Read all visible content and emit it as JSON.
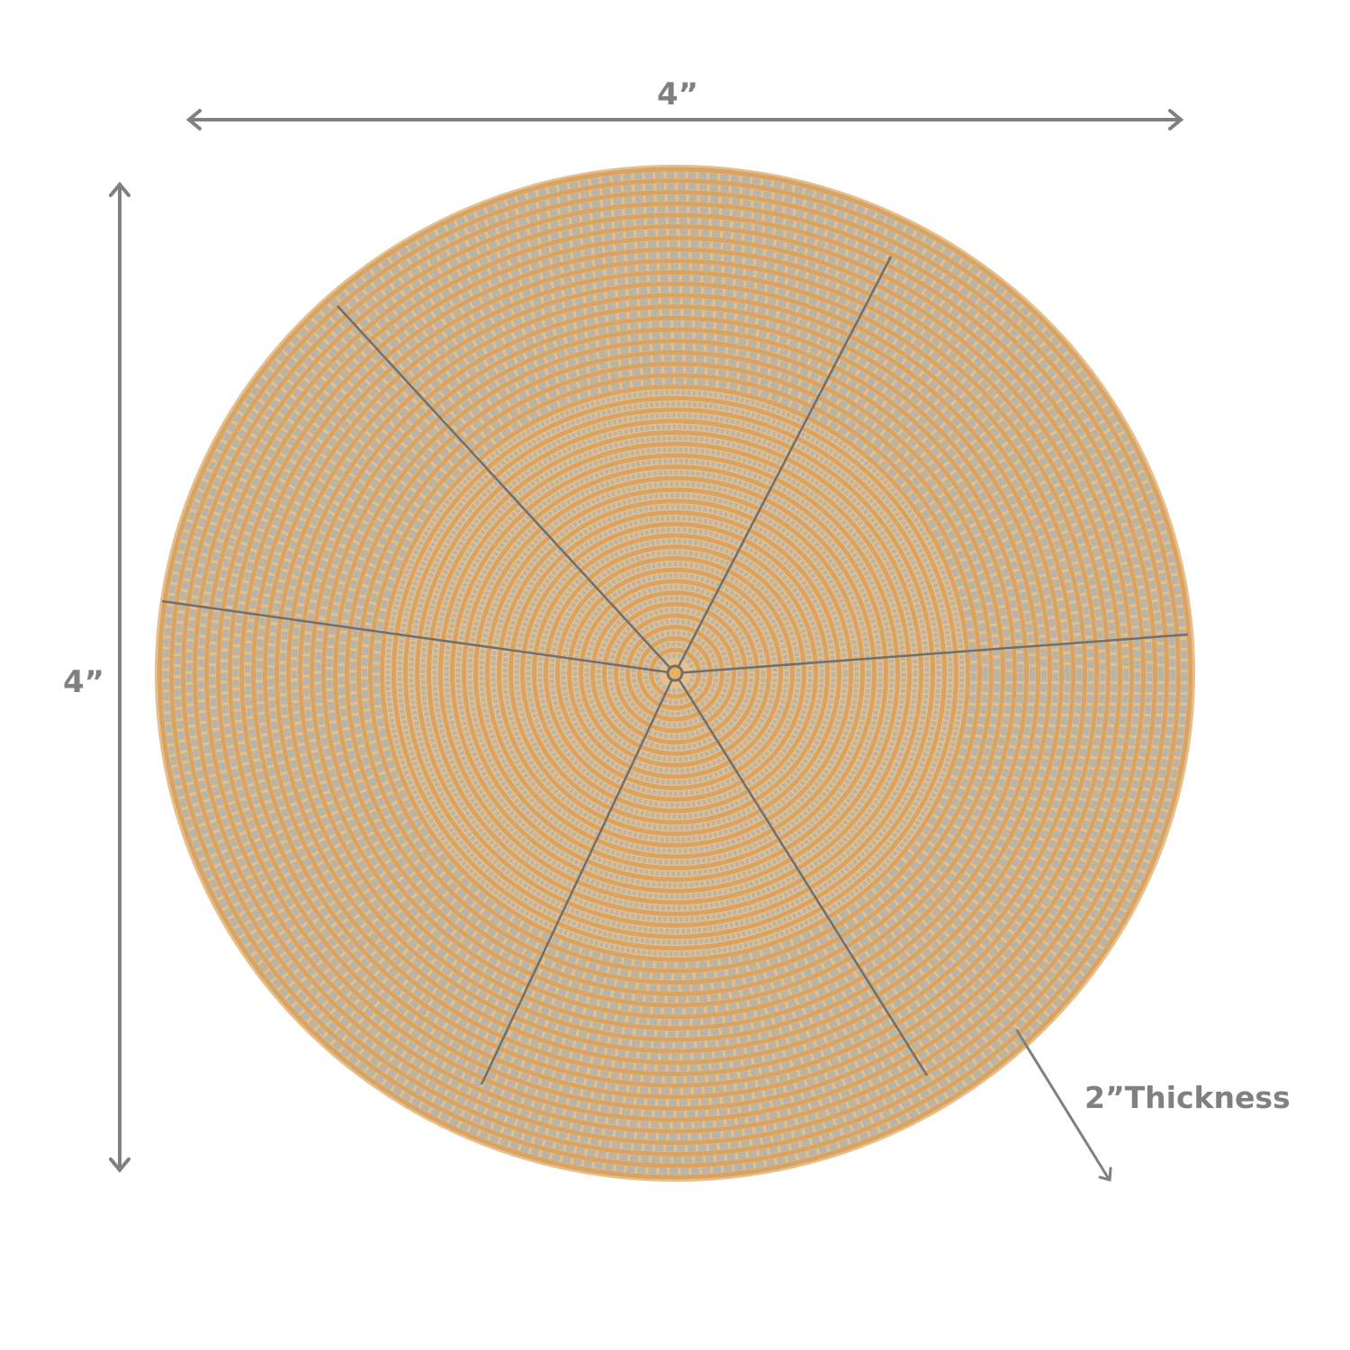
{
  "dimensions": {
    "width_label": "4”",
    "height_label": "4”",
    "thickness_label": "2”Thickness"
  },
  "product": {
    "name_icon": "beaded-round-coaster-bowl",
    "colors": {
      "gold": "#d9a463",
      "silver": "#b9b4a8",
      "wire": "#6f6f70"
    }
  },
  "annotation_color": "#808080"
}
